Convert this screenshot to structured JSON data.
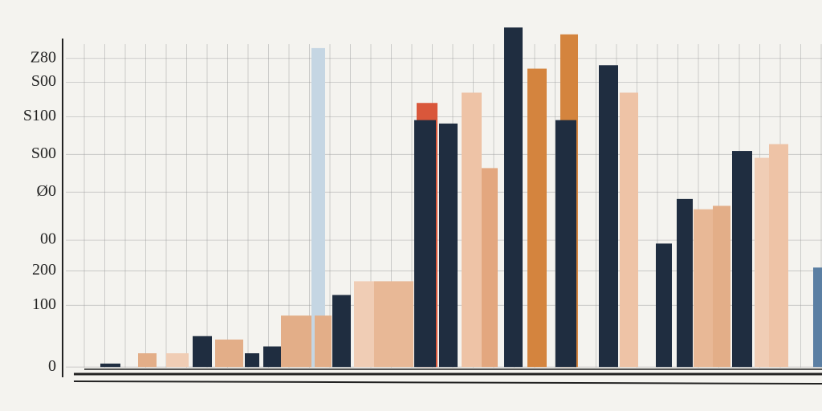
{
  "chart_data": {
    "type": "bar",
    "categories": [
      null,
      null,
      null,
      null,
      null,
      null,
      null,
      null,
      null,
      null,
      null,
      null,
      null,
      null,
      null,
      null,
      null,
      null,
      null,
      null,
      null,
      null,
      null,
      null,
      null,
      null,
      null,
      null,
      null,
      null,
      null,
      null
    ],
    "values": [
      1,
      4,
      4,
      9,
      8,
      4,
      6,
      15,
      93,
      15,
      21,
      25,
      25,
      77,
      72,
      71,
      80,
      58,
      99,
      87,
      97,
      72,
      88,
      80,
      36,
      49,
      46,
      47,
      63,
      61,
      65,
      29
    ],
    "colors": [
      "#1f2d40",
      "#e3ae88",
      "#f0cdb5",
      "#1f2d40",
      "#e3ae88",
      "#1f2d40",
      "#1f2d40",
      "#e3ae88",
      "#c5d6e3",
      "#e3ae88",
      "#1f2d40",
      "#f0cdb5",
      "#e8b896",
      "#d9573b",
      "#1f2d40",
      "#1f2d40",
      "#eec3a6",
      "#e3a77f",
      "#1f2d40",
      "#d4843e",
      "#d4843e",
      "#1f2d40",
      "#1f2d40",
      "#eec3a6",
      "#1f2d40",
      "#1f2d40",
      "#e8b896",
      "#e3ae88",
      "#1f2d40",
      "#f0cdb5",
      "#eec3a6",
      "#5b7fa3"
    ],
    "ylim": [
      -3,
      100
    ],
    "yticks": [
      {
        "value": 90,
        "label": "Z80"
      },
      {
        "value": 83,
        "label": "S00"
      },
      {
        "value": 73,
        "label": "S100"
      },
      {
        "value": 62,
        "label": "S00"
      },
      {
        "value": 51,
        "label": "Ø0"
      },
      {
        "value": 37,
        "label": "00"
      },
      {
        "value": 28,
        "label": "200"
      },
      {
        "value": 18,
        "label": "100"
      },
      0
    ],
    "grid": true
  }
}
